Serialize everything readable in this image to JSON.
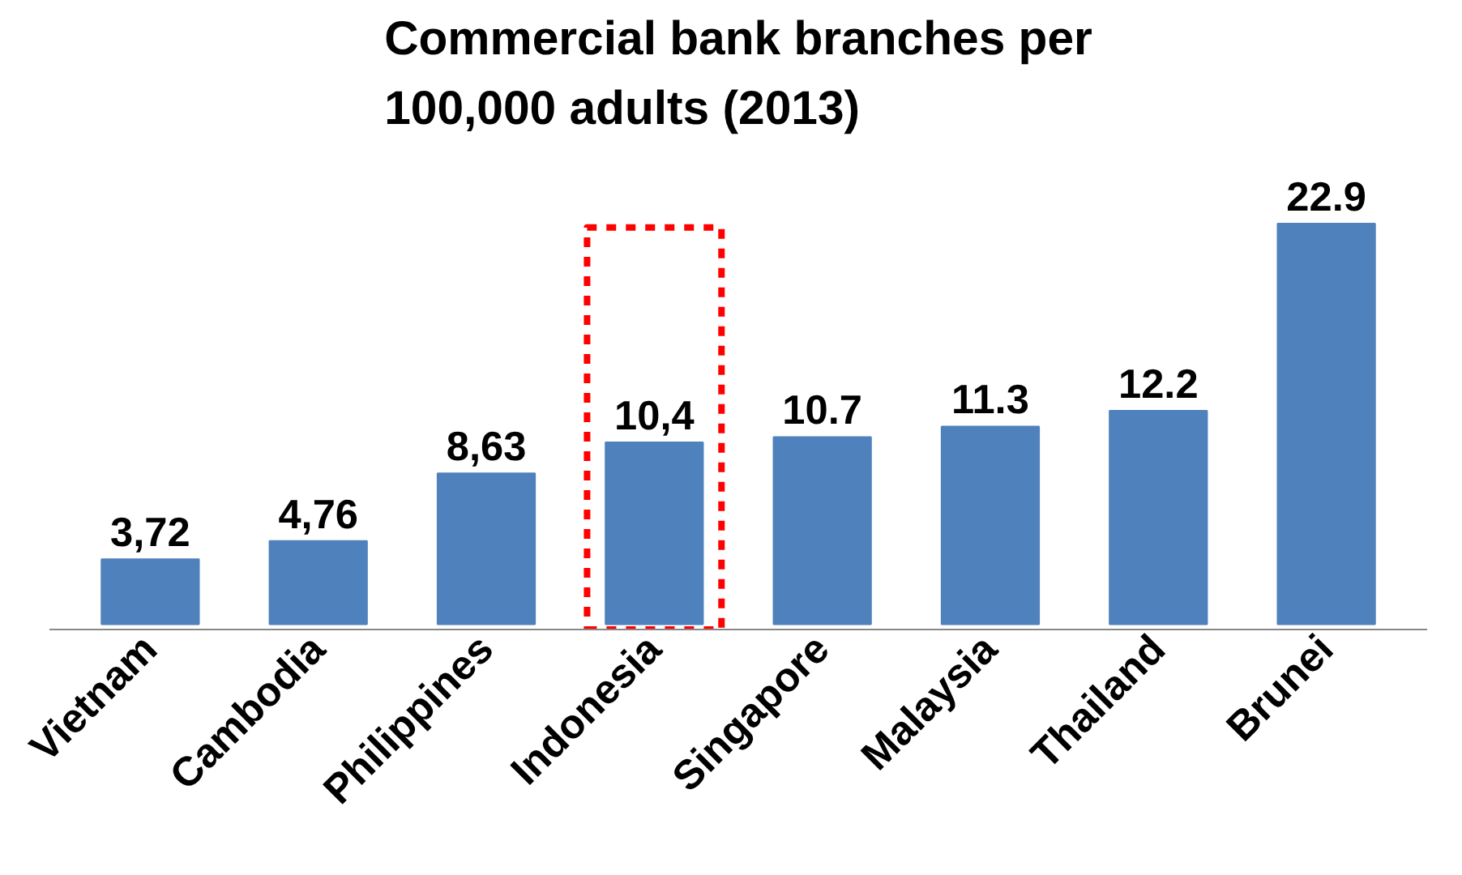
{
  "chart_data": {
    "type": "bar",
    "title": "Commercial bank branches per 100,000 adults (2013)",
    "categories": [
      "Vietnam",
      "Cambodia",
      "Philippines",
      "Indonesia",
      "Singapore",
      "Malaysia",
      "Thailand",
      "Brunei"
    ],
    "values": [
      3.72,
      4.76,
      8.63,
      10.4,
      10.7,
      11.3,
      12.2,
      22.9
    ],
    "value_labels": [
      "3,72",
      "4,76",
      "8,63",
      "10,4",
      "10.7",
      "11.3",
      "12.2",
      "22.9"
    ],
    "color": "#4f81bd",
    "tick_labels": "x"
  }
}
